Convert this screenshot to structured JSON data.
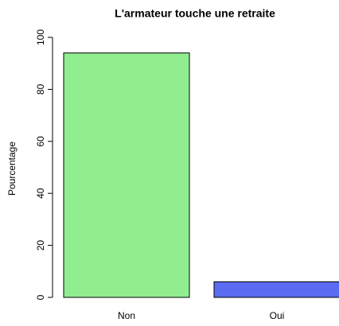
{
  "chart_data": {
    "type": "bar",
    "title": "L'armateur touche une retraite",
    "ylabel": "Pourcentage",
    "categories": [
      "Non",
      "Oui"
    ],
    "values": [
      94,
      6
    ],
    "colors": [
      "#90ee90",
      "#5b6cf2"
    ],
    "ylim": [
      0,
      100
    ],
    "yticks": [
      0,
      20,
      40,
      60,
      80,
      100
    ],
    "grid": false
  }
}
